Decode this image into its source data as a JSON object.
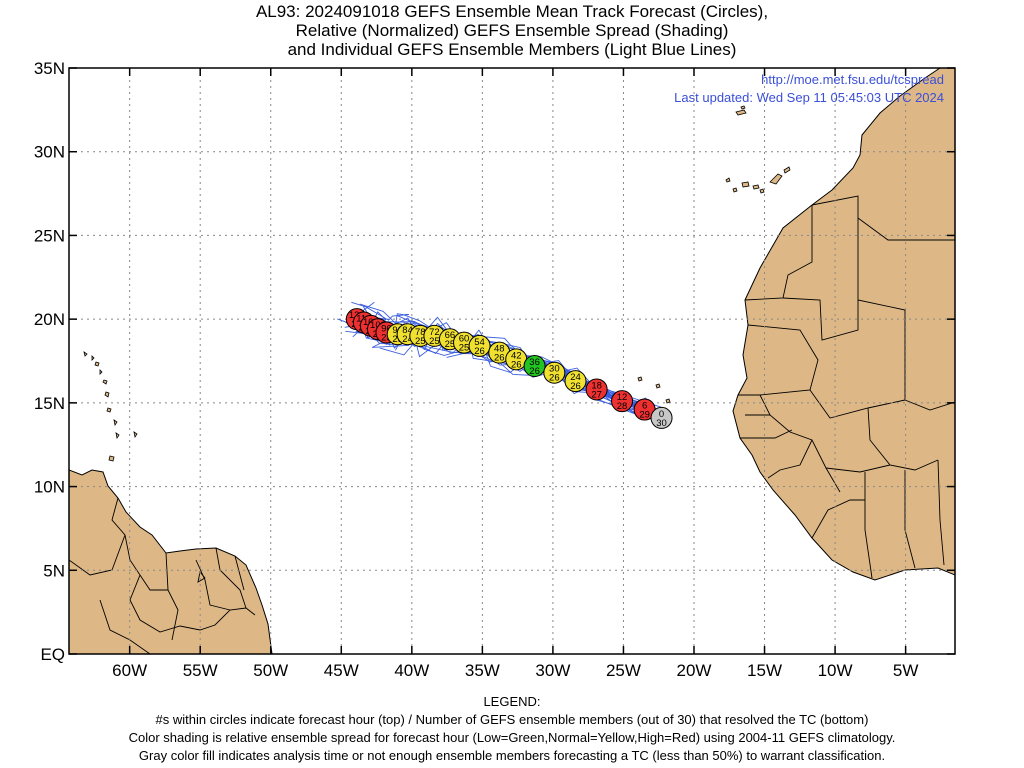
{
  "title": {
    "line1": "AL93: 2024091018 GEFS Ensemble Mean Track Forecast (Circles),",
    "line2": "Relative (Normalized) GEFS Ensemble Spread (Shading)",
    "line3": "and Individual GEFS Ensemble Members (Light Blue Lines)"
  },
  "credits": {
    "url": "http://moe.met.fsu.edu/tcspread",
    "updated": "Last updated: Wed Sep 11 05:45:03 UTC 2024"
  },
  "axes": {
    "x_ticks": [
      "60W",
      "55W",
      "50W",
      "45W",
      "40W",
      "35W",
      "30W",
      "25W",
      "20W",
      "15W",
      "10W",
      "5W"
    ],
    "y_ticks": [
      "EQ",
      "5N",
      "10N",
      "15N",
      "20N",
      "25N",
      "30N",
      "35N"
    ],
    "lon_range": [
      -64.3,
      -1.5
    ],
    "lat_range": [
      0,
      35
    ]
  },
  "colors": {
    "land": "#ddb886",
    "member_line": "#3a5ee0",
    "low": "#22c322",
    "normal": "#f0e030",
    "high": "#ee3030",
    "analysis": "#c8c8c8"
  },
  "track": [
    {
      "hour": "0",
      "members": "30",
      "lon": -22.3,
      "lat": 14.1,
      "cat": "analysis"
    },
    {
      "hour": "6",
      "members": "29",
      "lon": -23.5,
      "lat": 14.6,
      "cat": "high"
    },
    {
      "hour": "12",
      "members": "28",
      "lon": -25.1,
      "lat": 15.1,
      "cat": "high"
    },
    {
      "hour": "18",
      "members": "27",
      "lon": -26.9,
      "lat": 15.8,
      "cat": "high"
    },
    {
      "hour": "24",
      "members": "26",
      "lon": -28.4,
      "lat": 16.3,
      "cat": "normal"
    },
    {
      "hour": "30",
      "members": "26",
      "lon": -29.9,
      "lat": 16.8,
      "cat": "normal"
    },
    {
      "hour": "36",
      "members": "26",
      "lon": -31.3,
      "lat": 17.2,
      "cat": "low"
    },
    {
      "hour": "42",
      "members": "26",
      "lon": -32.6,
      "lat": 17.6,
      "cat": "normal"
    },
    {
      "hour": "48",
      "members": "26",
      "lon": -33.8,
      "lat": 18.0,
      "cat": "normal"
    },
    {
      "hour": "54",
      "members": "26",
      "lon": -35.2,
      "lat": 18.4,
      "cat": "normal"
    },
    {
      "hour": "60",
      "members": "25",
      "lon": -36.3,
      "lat": 18.6,
      "cat": "normal"
    },
    {
      "hour": "66",
      "members": "25",
      "lon": -37.3,
      "lat": 18.8,
      "cat": "normal"
    },
    {
      "hour": "72",
      "members": "25",
      "lon": -38.4,
      "lat": 19.0,
      "cat": "normal"
    },
    {
      "hour": "78",
      "members": "25",
      "lon": -39.4,
      "lat": 19.0,
      "cat": "normal"
    },
    {
      "hour": "84",
      "members": "24",
      "lon": -40.3,
      "lat": 19.1,
      "cat": "normal"
    },
    {
      "hour": "90",
      "members": "23",
      "lon": -41.0,
      "lat": 19.1,
      "cat": "normal"
    },
    {
      "hour": "96",
      "members": "23",
      "lon": -41.8,
      "lat": 19.2,
      "cat": "high"
    },
    {
      "hour": "102",
      "members": "22",
      "lon": -42.4,
      "lat": 19.4,
      "cat": "high"
    },
    {
      "hour": "108",
      "members": "22",
      "lon": -42.9,
      "lat": 19.6,
      "cat": "high"
    },
    {
      "hour": "114",
      "members": "22",
      "lon": -43.4,
      "lat": 19.8,
      "cat": "high"
    },
    {
      "hour": "120",
      "members": "22",
      "lon": -43.9,
      "lat": 20.0,
      "cat": "high"
    }
  ],
  "legend": {
    "heading": "LEGEND:",
    "line1": "#s within circles indicate forecast hour (top) / Number of GEFS ensemble members (out of 30) that resolved the TC (bottom)",
    "line2": "Color shading is relative ensemble spread for forecast hour (Low=Green,Normal=Yellow,High=Red) using 2004-11 GEFS climatology.",
    "line3": "Gray color fill indicates analysis time or not enough ensemble members forecasting a TC (less than 50%) to warrant classification."
  }
}
